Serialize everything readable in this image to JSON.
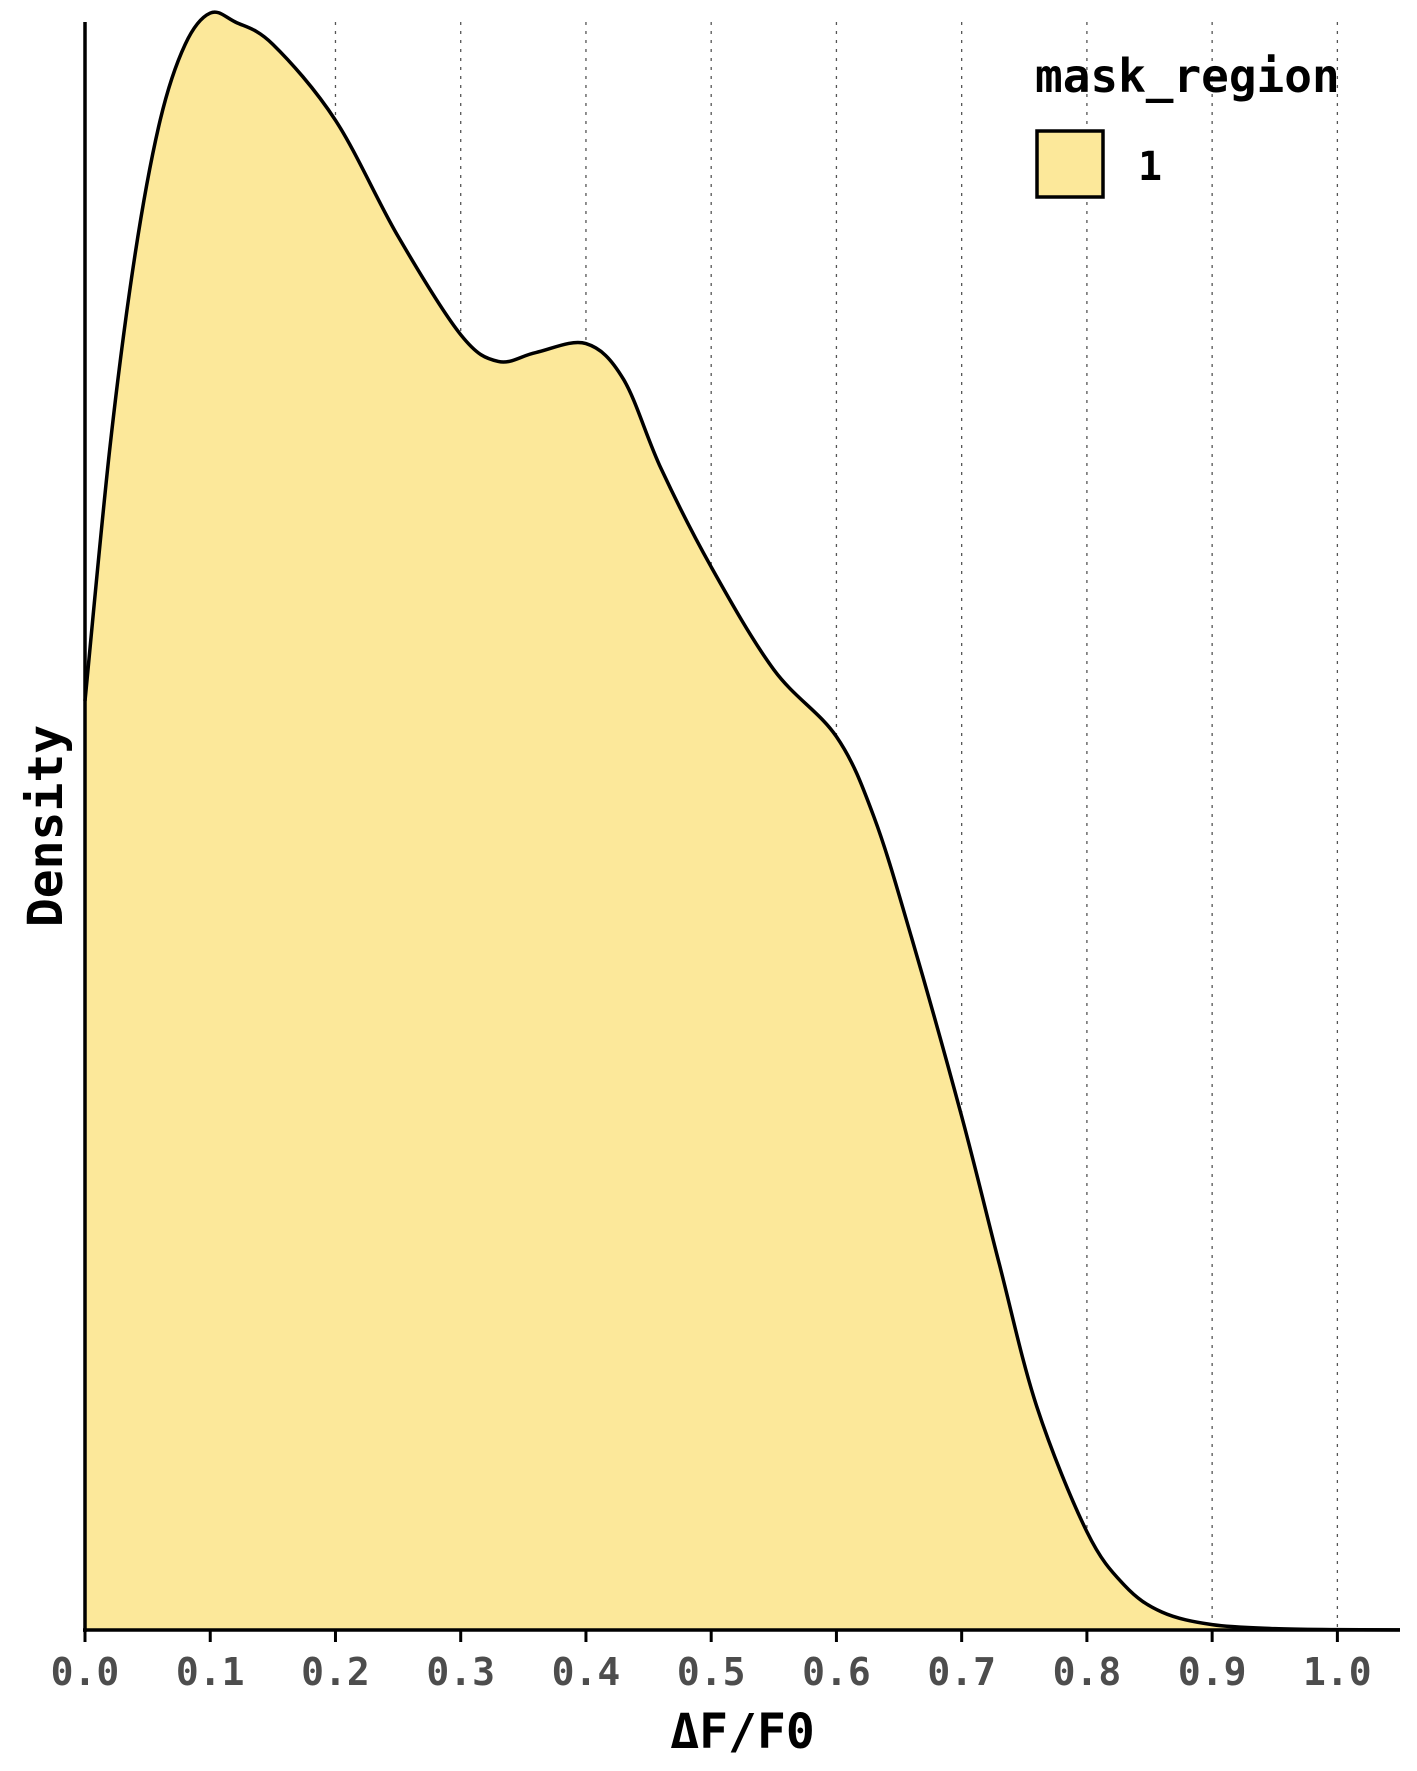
{
  "chart_data": {
    "type": "area",
    "xlabel": "ΔF/F0",
    "ylabel": "Density",
    "xlim": [
      0.0,
      1.05
    ],
    "ylim": [
      0,
      3.6
    ],
    "x_ticks": [
      "0.0",
      "0.1",
      "0.2",
      "0.3",
      "0.4",
      "0.5",
      "0.6",
      "0.7",
      "0.8",
      "0.9",
      "1.0"
    ],
    "y_ticks_shown": false,
    "grid": "vertical dotted at x ticks",
    "legend": {
      "title": "mask_region",
      "position": "top-right",
      "entries": [
        "1"
      ]
    },
    "fill_color": "#fce89a",
    "line_color": "#000000",
    "series": [
      {
        "name": "1",
        "x": [
          0.0,
          0.02,
          0.04,
          0.06,
          0.08,
          0.1,
          0.12,
          0.15,
          0.2,
          0.25,
          0.3,
          0.33,
          0.36,
          0.4,
          0.43,
          0.46,
          0.5,
          0.55,
          0.6,
          0.63,
          0.66,
          0.7,
          0.73,
          0.76,
          0.8,
          0.83,
          0.86,
          0.9,
          0.95,
          1.0,
          1.05
        ],
        "y": [
          2.08,
          2.65,
          3.08,
          3.38,
          3.55,
          3.62,
          3.6,
          3.55,
          3.38,
          3.12,
          2.9,
          2.84,
          2.86,
          2.88,
          2.8,
          2.6,
          2.38,
          2.15,
          2.0,
          1.82,
          1.55,
          1.15,
          0.82,
          0.5,
          0.22,
          0.1,
          0.04,
          0.012,
          0.003,
          0.0008,
          0.0002
        ]
      }
    ]
  }
}
